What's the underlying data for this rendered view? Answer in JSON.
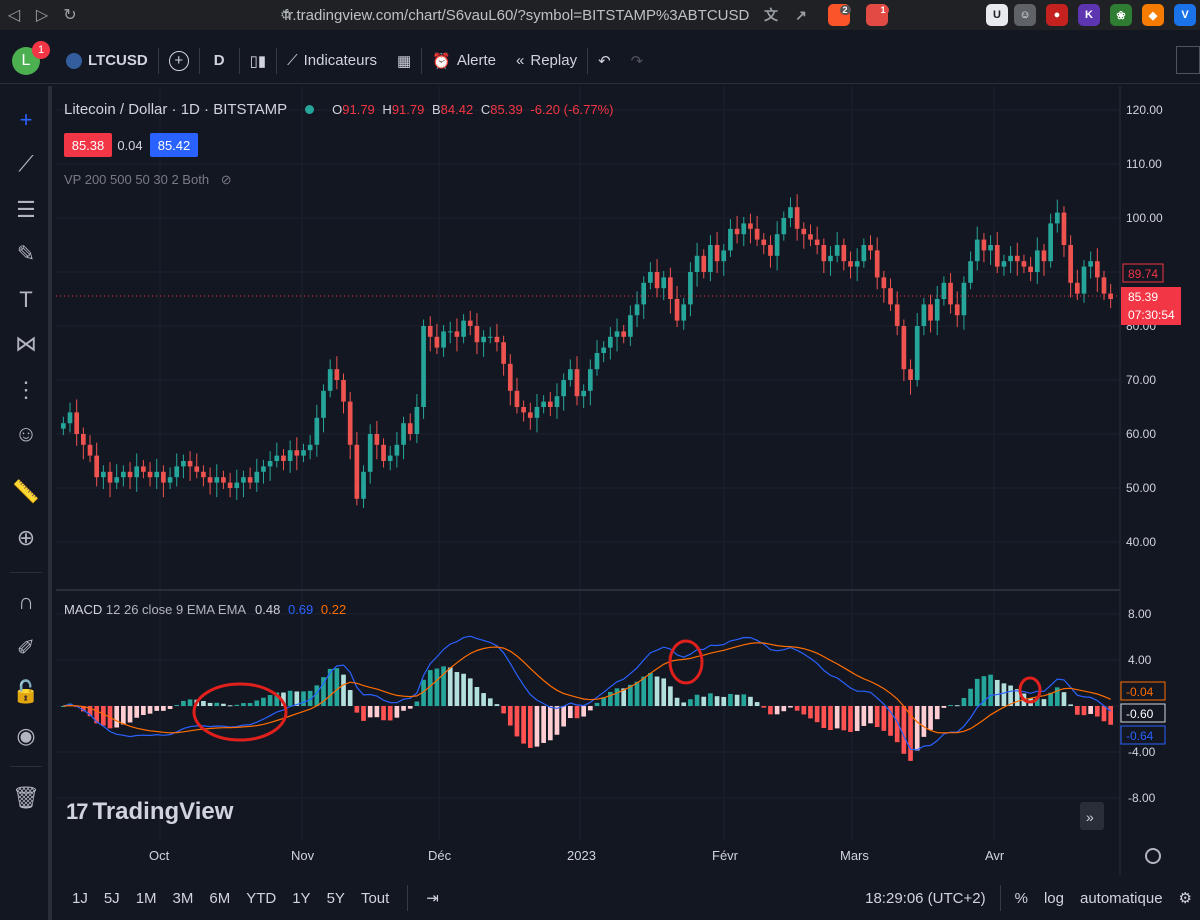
{
  "browser": {
    "url": "fr.tradingview.com/chart/S6vauL60/?symbol=BITSTAMP%3ABTCUSD",
    "ext_badges": [
      "2",
      "1"
    ]
  },
  "toolbar": {
    "avatar_letter": "L",
    "avatar_badge": "1",
    "symbol": "LTCUSD",
    "interval": "D",
    "indicators": "Indicateurs",
    "alert": "Alerte",
    "replay": "Replay"
  },
  "legend": {
    "title": "Litecoin / Dollar · 1D · BITSTAMP",
    "o_label": "O",
    "o": "91.79",
    "h_label": "H",
    "h": "91.79",
    "b_label": "B",
    "b": "84.42",
    "c_label": "C",
    "c": "85.39",
    "change": "-6.20 (-6.77%)",
    "bid": "85.38",
    "spread": "0.04",
    "ask": "85.42",
    "vp": "VP 200 500 50 30 2 Both"
  },
  "macd": {
    "label": "MACD",
    "params": "12 26 close 9 EMA EMA",
    "v1": "0.48",
    "v2": "0.69",
    "v3": "0.22"
  },
  "price_scale": [
    "120.00",
    "110.00",
    "100.00",
    "90.00",
    "80.00",
    "70.00",
    "60.00",
    "50.00",
    "40.00"
  ],
  "price_tags": {
    "hl": "89.74",
    "last": "85.39",
    "countdown": "07:30:54"
  },
  "macd_scale": [
    "8.00",
    "4.00",
    "-4.00",
    "-8.00"
  ],
  "macd_tags": {
    "orange": "-0.04",
    "zero": "-0.60",
    "blue": "-0.64"
  },
  "x_labels": [
    "Oct",
    "Nov",
    "Déc",
    "2023",
    "Févr",
    "Mars",
    "Avr"
  ],
  "watermark": "TradingView",
  "bottom": {
    "ranges": [
      "1J",
      "5J",
      "1M",
      "3M",
      "6M",
      "YTD",
      "1Y",
      "5Y",
      "Tout"
    ],
    "clock": "18:29:06 (UTC+2)",
    "pct": "%",
    "log": "log",
    "auto": "automatique"
  },
  "colors": {
    "up": "#26a69a",
    "down": "#ef5350",
    "macd": "#2962ff",
    "signal": "#ff6d00",
    "bg": "#131722"
  },
  "chart_data": {
    "type": "candlestick",
    "title": "Litecoin / Dollar · 1D · BITSTAMP",
    "ylim": [
      35,
      125
    ],
    "closes": [
      62,
      64,
      60,
      58,
      56,
      52,
      53,
      51,
      52,
      53,
      52,
      54,
      53,
      52,
      53,
      51,
      52,
      54,
      55,
      54,
      53,
      52,
      51,
      52,
      51,
      50,
      51,
      52,
      51,
      53,
      54,
      55,
      56,
      55,
      57,
      56,
      57,
      58,
      63,
      68,
      72,
      70,
      66,
      58,
      48,
      53,
      60,
      58,
      55,
      56,
      58,
      62,
      60,
      65,
      80,
      78,
      76,
      79,
      79,
      78,
      81,
      80,
      77,
      78,
      78,
      77,
      73,
      68,
      65,
      64,
      63,
      65,
      66,
      65,
      67,
      70,
      72,
      67,
      68,
      72,
      75,
      76,
      78,
      79,
      78,
      82,
      84,
      88,
      90,
      87,
      89,
      85,
      81,
      84,
      90,
      93,
      90,
      95,
      92,
      94,
      98,
      97,
      99,
      98,
      96,
      95,
      93,
      97,
      100,
      102,
      98,
      97,
      96,
      95,
      92,
      93,
      95,
      92,
      91,
      92,
      95,
      94,
      89,
      87,
      84,
      80,
      72,
      70,
      80,
      84,
      81,
      85,
      88,
      84,
      82,
      88,
      92,
      96,
      94,
      95,
      91,
      92,
      93,
      92,
      91,
      90,
      94,
      92,
      99,
      101,
      95,
      88,
      86,
      91,
      92,
      89,
      86,
      85
    ]
  }
}
